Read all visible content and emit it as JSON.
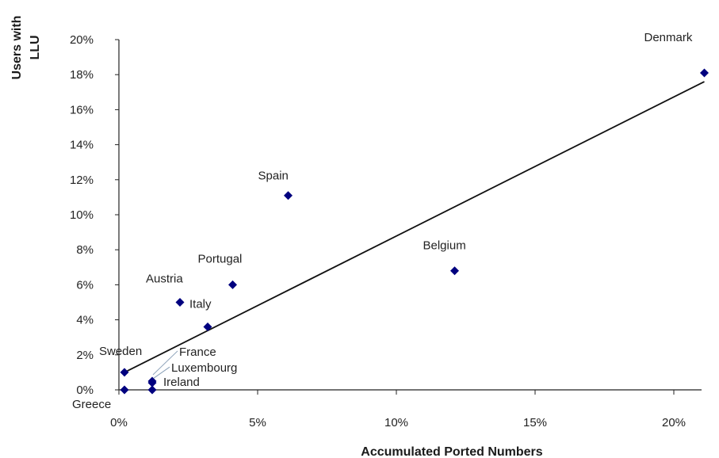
{
  "chart_data": {
    "type": "scatter",
    "title": "",
    "xlabel": "Accumulated Ported Numbers",
    "ylabel_lines": [
      "Users with",
      "LLU"
    ],
    "xlim": [
      0,
      21
    ],
    "ylim": [
      0,
      20
    ],
    "x_ticks": [
      0,
      5,
      10,
      15,
      20
    ],
    "y_ticks": [
      0,
      2,
      4,
      6,
      8,
      10,
      12,
      14,
      16,
      18,
      20
    ],
    "x_tick_labels": [
      "0%",
      "5%",
      "10%",
      "15%",
      "20%"
    ],
    "y_tick_labels": [
      "0%",
      "2%",
      "4%",
      "6%",
      "8%",
      "10%",
      "12%",
      "14%",
      "16%",
      "18%",
      "20%"
    ],
    "grid": false,
    "marker": "diamond",
    "marker_color": "#00007f",
    "points": [
      {
        "label": "Denmark",
        "x": 21.1,
        "y": 18.1
      },
      {
        "label": "Spain",
        "x": 6.1,
        "y": 11.1
      },
      {
        "label": "Belgium",
        "x": 12.1,
        "y": 6.8
      },
      {
        "label": "Portugal",
        "x": 4.1,
        "y": 6.0
      },
      {
        "label": "Austria",
        "x": 2.2,
        "y": 5.0
      },
      {
        "label": "Italy",
        "x": 3.2,
        "y": 3.6
      },
      {
        "label": "Sweden",
        "x": 0.2,
        "y": 1.0
      },
      {
        "label": "France",
        "x": 1.2,
        "y": 0.5
      },
      {
        "label": "Luxembourg",
        "x": 1.2,
        "y": 0.4
      },
      {
        "label": "Ireland",
        "x": 1.2,
        "y": 0.0
      },
      {
        "label": "Greece",
        "x": 0.2,
        "y": 0.0
      }
    ],
    "trendline": {
      "type": "linear",
      "x": [
        0.2,
        21.1
      ],
      "y": [
        1.0,
        17.6
      ],
      "color": "#111111"
    }
  }
}
